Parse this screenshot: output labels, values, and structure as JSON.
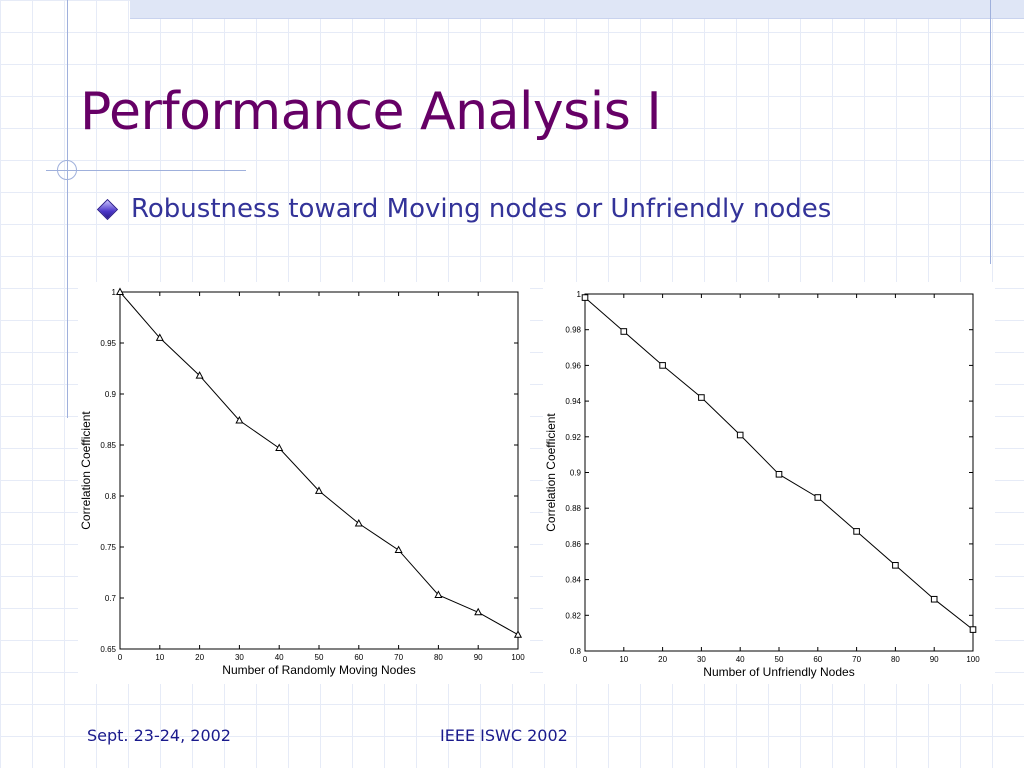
{
  "slide": {
    "title": "Performance Analysis I",
    "bullet": "Robustness toward Moving nodes or Unfriendly nodes",
    "footer_left": "Sept. 23-24, 2002",
    "footer_center": "IEEE ISWC 2002"
  },
  "colors": {
    "title": "#660066",
    "bullet_text": "#333399",
    "footer_text": "#1a1a8c",
    "grid": "#e6ebf7",
    "accent_band": "#dfe6f6"
  },
  "chart_data": [
    {
      "type": "line",
      "marker": "triangle",
      "xlabel": "Number of Randomly Moving Nodes",
      "ylabel": "Correlation Coefficient",
      "xlim": [
        0,
        100
      ],
      "ylim": [
        0.65,
        1.0
      ],
      "xticks": [
        0,
        10,
        20,
        30,
        40,
        50,
        60,
        70,
        80,
        90,
        100
      ],
      "yticks": [
        0.65,
        0.7,
        0.75,
        0.8,
        0.85,
        0.9,
        0.95,
        1.0
      ],
      "ytick_labels": [
        "0.65",
        "0.7",
        "0.75",
        "0.8",
        "0.85",
        "0.9",
        "0.95",
        "1"
      ],
      "x": [
        0,
        10,
        20,
        30,
        40,
        50,
        60,
        70,
        80,
        90,
        100
      ],
      "y": [
        1.0,
        0.955,
        0.918,
        0.874,
        0.847,
        0.805,
        0.773,
        0.747,
        0.703,
        0.686,
        0.664
      ]
    },
    {
      "type": "line",
      "marker": "square",
      "xlabel": "Number of Unfriendly Nodes",
      "ylabel": "Correlation Coefficient",
      "xlim": [
        0,
        100
      ],
      "ylim": [
        0.8,
        1.0
      ],
      "xticks": [
        0,
        10,
        20,
        30,
        40,
        50,
        60,
        70,
        80,
        90,
        100
      ],
      "yticks": [
        0.8,
        0.82,
        0.84,
        0.86,
        0.88,
        0.9,
        0.92,
        0.94,
        0.96,
        0.98,
        1.0
      ],
      "ytick_labels": [
        "0.8",
        "0.82",
        "0.84",
        "0.86",
        "0.88",
        "0.9",
        "0.92",
        "0.94",
        "0.96",
        "0.98",
        "1"
      ],
      "x": [
        0,
        10,
        20,
        30,
        40,
        50,
        60,
        70,
        80,
        90,
        100
      ],
      "y": [
        0.998,
        0.979,
        0.96,
        0.942,
        0.921,
        0.899,
        0.886,
        0.867,
        0.848,
        0.829,
        0.812
      ]
    }
  ]
}
